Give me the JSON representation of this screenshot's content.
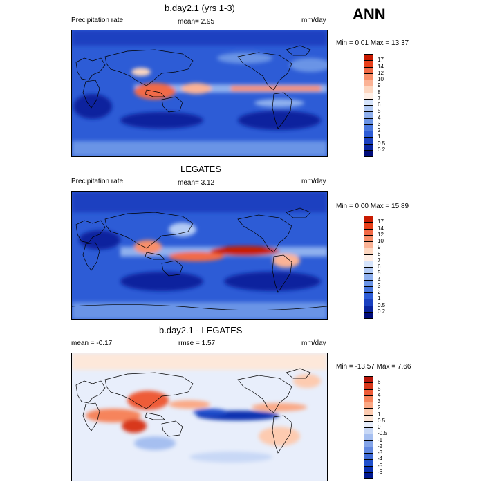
{
  "season": "ANN",
  "panels": [
    {
      "title": "b.day2.1 (yrs 1-3)",
      "left_label": "Precipitation rate",
      "mid_label": "mean=   2.95",
      "right_label": "mm/day",
      "minmax": "Min =   0.01 Max =  13.37",
      "colorbar": {
        "colors": [
          "#c81a00",
          "#e8401a",
          "#f26a46",
          "#f88f6a",
          "#fbb396",
          "#fdd7c1",
          "#ffefe6",
          "#d6e4fb",
          "#b3cbf5",
          "#8fb0ee",
          "#6b94e6",
          "#4a78de",
          "#2d5cd6",
          "#1a40c0",
          "#0a249e",
          "#000c7a"
        ],
        "ticks": [
          "17",
          "14",
          "12",
          "10",
          "9",
          "8",
          "7",
          "6",
          "5",
          "4",
          "3",
          "2",
          "1",
          "0.5",
          "0.2"
        ]
      }
    },
    {
      "title": "LEGATES",
      "left_label": "Precipitation rate",
      "mid_label": "mean=   3.12",
      "right_label": "mm/day",
      "minmax": "Min =   0.00 Max =  15.89",
      "colorbar": {
        "colors": [
          "#c81a00",
          "#e8401a",
          "#f26a46",
          "#f88f6a",
          "#fbb396",
          "#fdd7c1",
          "#ffefe6",
          "#d6e4fb",
          "#b3cbf5",
          "#8fb0ee",
          "#6b94e6",
          "#4a78de",
          "#2d5cd6",
          "#1a40c0",
          "#0a249e",
          "#000c7a"
        ],
        "ticks": [
          "17",
          "14",
          "12",
          "10",
          "9",
          "8",
          "7",
          "6",
          "5",
          "4",
          "3",
          "2",
          "1",
          "0.5",
          "0.2"
        ]
      }
    },
    {
      "title": "b.day2.1 - LEGATES",
      "left_label": "mean =  -0.17",
      "mid_label": "rmse =   1.57",
      "right_label": "mm/day",
      "minmax": "Min = -13.57 Max =   7.66",
      "colorbar": {
        "colors": [
          "#b8160a",
          "#d8381a",
          "#ee5c38",
          "#f6845c",
          "#fba884",
          "#fdcbb0",
          "#fde8da",
          "#e8eefb",
          "#c8d8f6",
          "#a6bff0",
          "#84a4e8",
          "#6288e0",
          "#406cd8",
          "#2050cc",
          "#0a30b0",
          "#001890"
        ],
        "ticks": [
          "6",
          "5",
          "4",
          "3",
          "2",
          "1",
          "0.5",
          "0",
          "-0.5",
          "-1",
          "-2",
          "-3",
          "-4",
          "-5",
          "-6"
        ]
      }
    }
  ]
}
